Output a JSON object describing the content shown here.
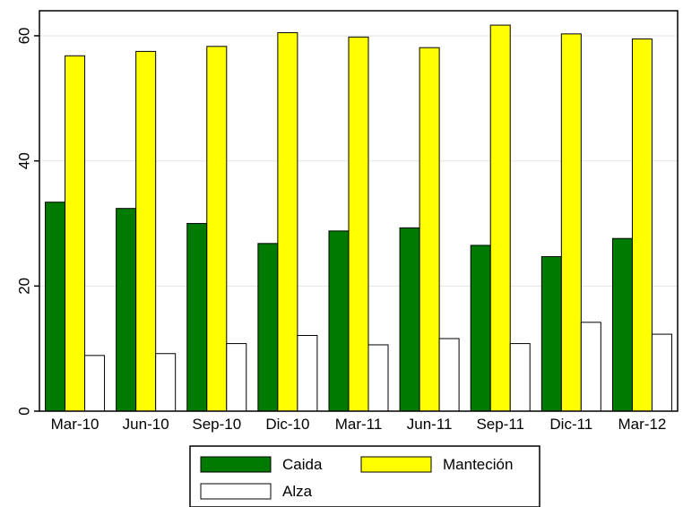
{
  "chart_data": {
    "type": "bar",
    "title": "",
    "xlabel": "",
    "ylabel": "",
    "categories": [
      "Mar-10",
      "Jun-10",
      "Sep-10",
      "Dic-10",
      "Mar-11",
      "Jun-11",
      "Sep-11",
      "Dic-11",
      "Mar-12"
    ],
    "series": [
      {
        "name": "Caida",
        "color": "#007a00",
        "values": [
          33.4,
          32.4,
          30.0,
          26.8,
          28.8,
          29.3,
          26.5,
          24.7,
          27.6
        ]
      },
      {
        "name": "Manteción",
        "color": "#ffff00",
        "values": [
          56.8,
          57.5,
          58.3,
          60.5,
          59.8,
          58.1,
          61.7,
          60.3,
          59.5
        ]
      },
      {
        "name": "Alza",
        "color": "#ffffff",
        "values": [
          8.9,
          9.2,
          10.8,
          12.1,
          10.6,
          11.6,
          10.8,
          14.2,
          12.3
        ]
      }
    ],
    "yticks": [
      0,
      20,
      40,
      60
    ],
    "ylim": [
      0,
      64
    ],
    "grid": true,
    "legend_position": "bottom"
  }
}
